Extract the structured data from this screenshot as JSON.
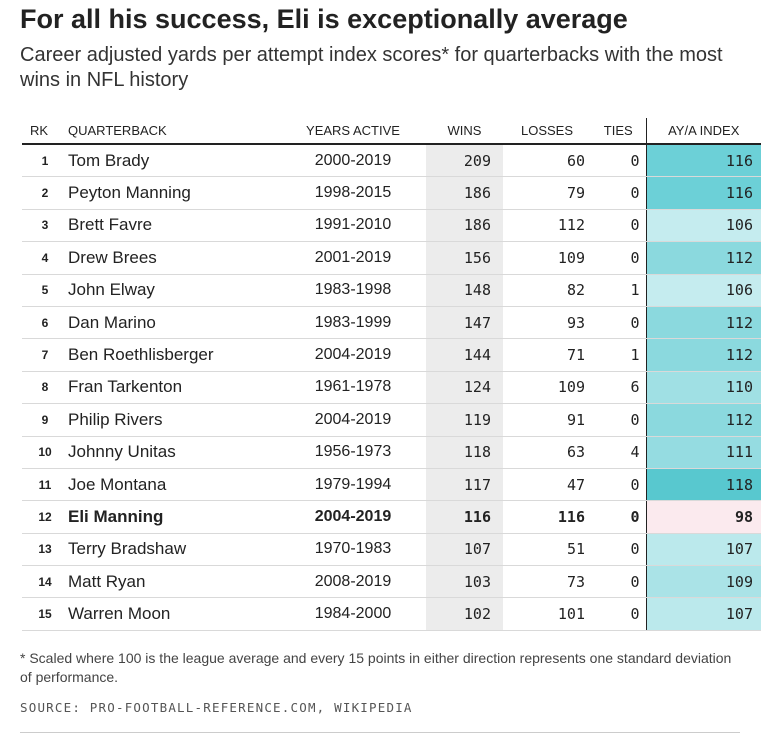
{
  "title": "For all his success, Eli is exceptionally average",
  "subtitle": "Career adjusted yards per attempt index scores* for quarterbacks with the most wins in NFL history",
  "footnote": "* Scaled where 100 is the league average and every 15 points in either direction represents one standard deviation of performance.",
  "source": "SOURCE: PRO-FOOTBALL-REFERENCE.COM, WIKIPEDIA",
  "colors": {
    "index_118": "#58c8cf",
    "index_116": "#6cd0d7",
    "index_112": "#8bd9de",
    "index_111": "#95dce1",
    "index_110": "#a0e0e4",
    "index_109": "#aae3e7",
    "index_107": "#bbe9ec",
    "index_106": "#c5ecef",
    "index_98": "#fbeaee",
    "wins_column_bg": "#ececec"
  },
  "chart_data": {
    "type": "table",
    "title": "For all his success, Eli is exceptionally average",
    "subtitle": "Career adjusted yards per attempt index scores* for quarterbacks with the most wins in NFL history",
    "columns": [
      "RK",
      "QUARTERBACK",
      "YEARS ACTIVE",
      "WINS",
      "LOSSES",
      "TIES",
      "AY/A INDEX"
    ],
    "highlight_row": 12,
    "rows": [
      {
        "rk": "1",
        "name": "Tom Brady",
        "years": "2000-2019",
        "wins": "209",
        "losses": "60",
        "ties": "0",
        "index": "116"
      },
      {
        "rk": "2",
        "name": "Peyton Manning",
        "years": "1998-2015",
        "wins": "186",
        "losses": "79",
        "ties": "0",
        "index": "116"
      },
      {
        "rk": "3",
        "name": "Brett Favre",
        "years": "1991-2010",
        "wins": "186",
        "losses": "112",
        "ties": "0",
        "index": "106"
      },
      {
        "rk": "4",
        "name": "Drew Brees",
        "years": "2001-2019",
        "wins": "156",
        "losses": "109",
        "ties": "0",
        "index": "112"
      },
      {
        "rk": "5",
        "name": "John Elway",
        "years": "1983-1998",
        "wins": "148",
        "losses": "82",
        "ties": "1",
        "index": "106"
      },
      {
        "rk": "6",
        "name": "Dan Marino",
        "years": "1983-1999",
        "wins": "147",
        "losses": "93",
        "ties": "0",
        "index": "112"
      },
      {
        "rk": "7",
        "name": "Ben Roethlisberger",
        "years": "2004-2019",
        "wins": "144",
        "losses": "71",
        "ties": "1",
        "index": "112"
      },
      {
        "rk": "8",
        "name": "Fran Tarkenton",
        "years": "1961-1978",
        "wins": "124",
        "losses": "109",
        "ties": "6",
        "index": "110"
      },
      {
        "rk": "9",
        "name": "Philip Rivers",
        "years": "2004-2019",
        "wins": "119",
        "losses": "91",
        "ties": "0",
        "index": "112"
      },
      {
        "rk": "10",
        "name": "Johnny Unitas",
        "years": "1956-1973",
        "wins": "118",
        "losses": "63",
        "ties": "4",
        "index": "111"
      },
      {
        "rk": "11",
        "name": "Joe Montana",
        "years": "1979-1994",
        "wins": "117",
        "losses": "47",
        "ties": "0",
        "index": "118"
      },
      {
        "rk": "12",
        "name": "Eli Manning",
        "years": "2004-2019",
        "wins": "116",
        "losses": "116",
        "ties": "0",
        "index": "98"
      },
      {
        "rk": "13",
        "name": "Terry Bradshaw",
        "years": "1970-1983",
        "wins": "107",
        "losses": "51",
        "ties": "0",
        "index": "107"
      },
      {
        "rk": "14",
        "name": "Matt Ryan",
        "years": "2008-2019",
        "wins": "103",
        "losses": "73",
        "ties": "0",
        "index": "109"
      },
      {
        "rk": "15",
        "name": "Warren Moon",
        "years": "1984-2000",
        "wins": "102",
        "losses": "101",
        "ties": "0",
        "index": "107"
      }
    ]
  }
}
